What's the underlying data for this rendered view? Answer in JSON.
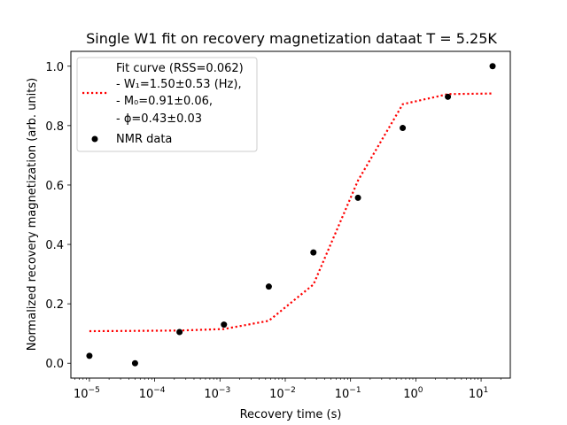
{
  "chart_data": {
    "type": "scatter",
    "title": "Single W1 fit on recovery magnetization dataat T = 5.25K",
    "xlabel": "Recovery time (s)",
    "ylabel": "Normalized recovery magnetization (arb. units)",
    "x_scale": "log",
    "xlim": [
      5.2e-06,
      28
    ],
    "ylim": [
      -0.05,
      1.05
    ],
    "x_ticks": [
      {
        "value": 1e-05,
        "base": "10",
        "exp": "−5"
      },
      {
        "value": 0.0001,
        "base": "10",
        "exp": "−4"
      },
      {
        "value": 0.001,
        "base": "10",
        "exp": "−3"
      },
      {
        "value": 0.01,
        "base": "10",
        "exp": "−2"
      },
      {
        "value": 0.1,
        "base": "10",
        "exp": "−1"
      },
      {
        "value": 1,
        "base": "10",
        "exp": "0"
      },
      {
        "value": 10,
        "base": "10",
        "exp": "1"
      }
    ],
    "y_ticks": [
      0.0,
      0.2,
      0.4,
      0.6,
      0.8,
      1.0
    ],
    "y_tick_labels": [
      "0.0",
      "0.2",
      "0.4",
      "0.6",
      "0.8",
      "1.0"
    ],
    "grid": false,
    "legend_position": "upper-left",
    "series": [
      {
        "name": "NMR data",
        "kind": "scatter",
        "color": "#000000",
        "x": [
          1e-05,
          5e-05,
          0.00024,
          0.00115,
          0.0056,
          0.027,
          0.13,
          0.63,
          3.1,
          15
        ],
        "y": [
          0.025,
          0.0,
          0.105,
          0.13,
          0.258,
          0.373,
          0.557,
          0.792,
          0.897,
          1.0
        ]
      },
      {
        "name": "Fit curve",
        "kind": "line",
        "style": "dotted",
        "color": "#ff0000",
        "x": [
          1e-05,
          5e-05,
          0.00024,
          0.00115,
          0.0056,
          0.027,
          0.13,
          0.63,
          3.1,
          15
        ],
        "y": [
          0.108,
          0.109,
          0.11,
          0.115,
          0.143,
          0.265,
          0.615,
          0.872,
          0.906,
          0.908
        ]
      }
    ],
    "legend": {
      "fit_lines": [
        "Fit curve (RSS=0.062)",
        "- W₁=1.50±0.53 (Hz),",
        "- M₀=0.91±0.06,",
        "- ϕ=0.43±0.03"
      ],
      "data_label": "NMR data"
    }
  }
}
